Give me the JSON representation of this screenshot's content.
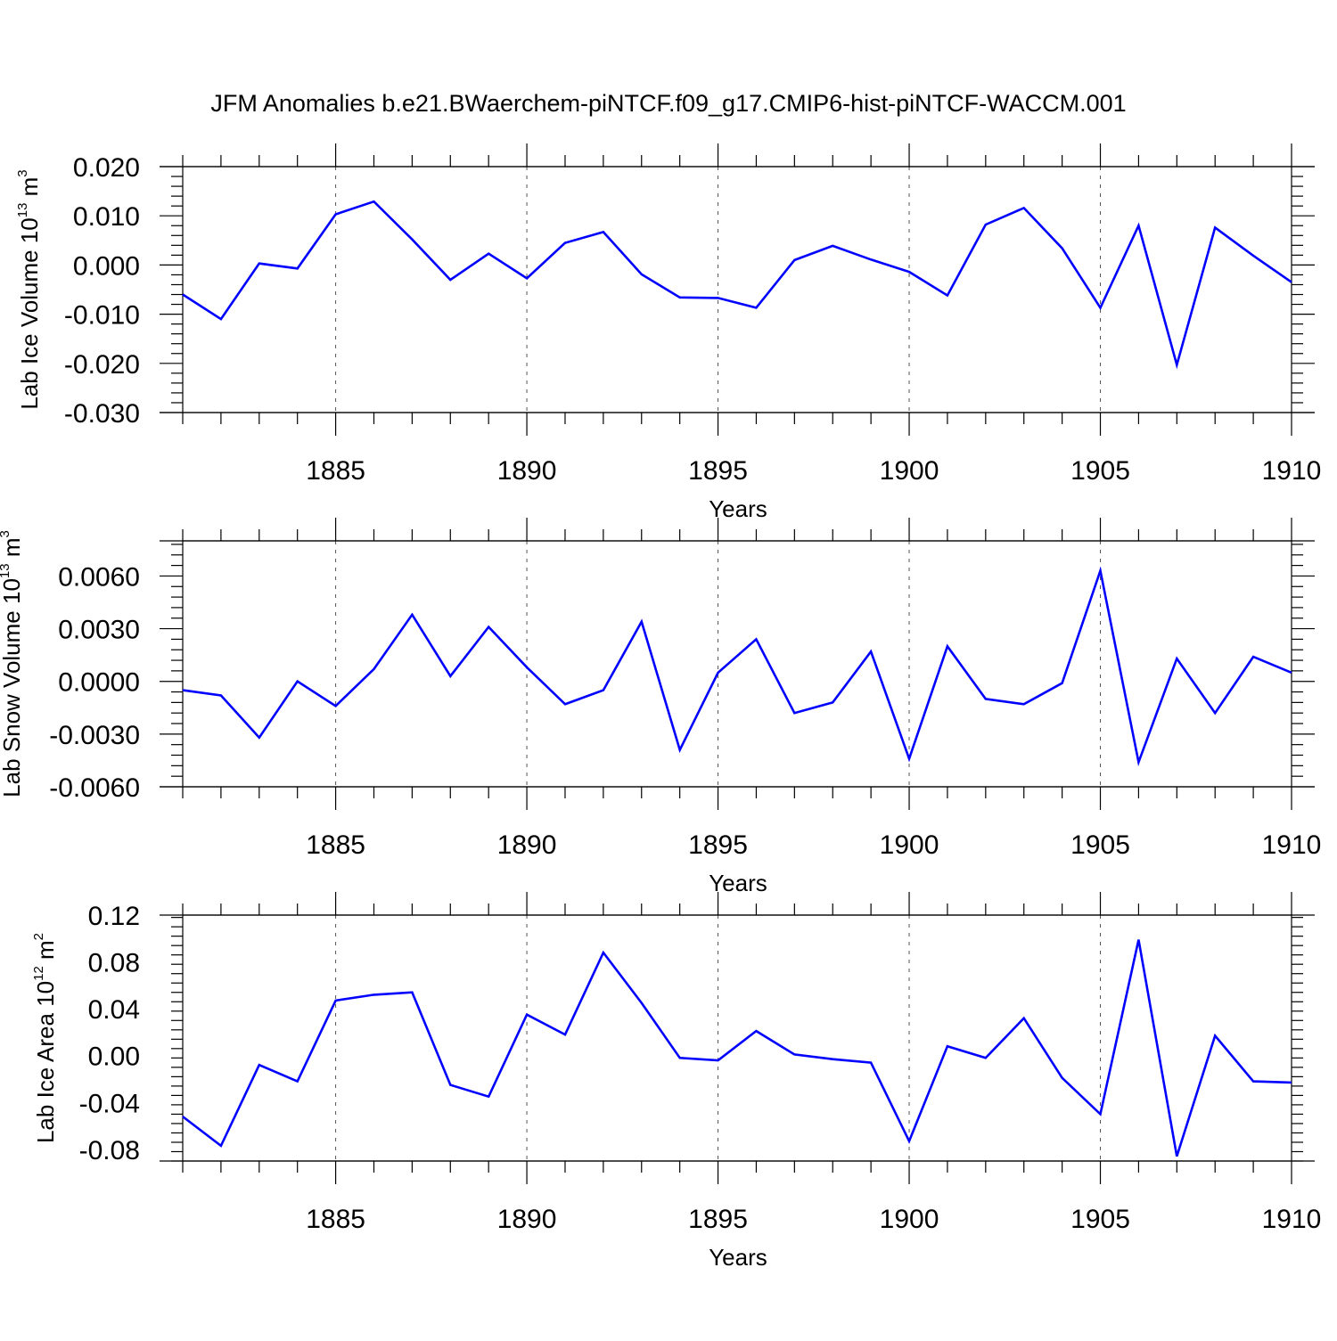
{
  "title": "JFM Anomalies b.e21.BWaerchem-piNTCF.f09_g17.CMIP6-hist-piNTCF-WACCM.001",
  "colors": {
    "line": "#0000ff",
    "axis": "#000000",
    "grid": "#555555"
  },
  "chart_data": [
    {
      "type": "line",
      "ylabel": "Lab Ice Volume 10",
      "ylabel_exp": "13",
      "ylabel_unit": " m",
      "ylabel_unit_exp": "3",
      "xlabel": "Years",
      "xlim": [
        1881,
        1910
      ],
      "ylim": [
        -0.03,
        0.02
      ],
      "xticks": [
        "1885",
        "1890",
        "1895",
        "1900",
        "1905",
        "1910"
      ],
      "yticks": [
        "0.020",
        "0.010",
        "0.000",
        "-0.010",
        "-0.020",
        "-0.030"
      ],
      "ytick_values": [
        0.02,
        0.01,
        0.0,
        -0.01,
        -0.02,
        -0.03
      ],
      "grid": "vertical dashed at major x ticks",
      "x": [
        1881,
        1882,
        1883,
        1884,
        1885,
        1886,
        1887,
        1888,
        1889,
        1890,
        1891,
        1892,
        1893,
        1894,
        1895,
        1896,
        1897,
        1898,
        1899,
        1900,
        1901,
        1902,
        1903,
        1904,
        1905,
        1906,
        1907,
        1908,
        1909,
        1910
      ],
      "values": [
        -0.006,
        -0.011,
        0.0003,
        -0.0007,
        0.0103,
        0.0129,
        0.0052,
        -0.003,
        0.0023,
        -0.0027,
        0.0045,
        0.0067,
        -0.0019,
        -0.0066,
        -0.0067,
        -0.0087,
        0.001,
        0.0039,
        0.0011,
        -0.0014,
        -0.0062,
        0.0082,
        0.0116,
        0.0034,
        -0.0087,
        0.008,
        -0.0203,
        0.0076,
        0.0019,
        -0.0035
      ]
    },
    {
      "type": "line",
      "ylabel": "Lab Snow Volume 10",
      "ylabel_exp": "13",
      "ylabel_unit": " m",
      "ylabel_unit_exp": "3",
      "xlabel": "Years",
      "xlim": [
        1881,
        1910
      ],
      "ylim": [
        -0.006,
        0.008
      ],
      "xticks": [
        "1885",
        "1890",
        "1895",
        "1900",
        "1905",
        "1910"
      ],
      "yticks": [
        "0.0060",
        "0.0030",
        "0.0000",
        "-0.0030",
        "-0.0060"
      ],
      "ytick_values": [
        0.006,
        0.003,
        0.0,
        -0.003,
        -0.006
      ],
      "grid": "vertical dashed at major x ticks",
      "x": [
        1881,
        1882,
        1883,
        1884,
        1885,
        1886,
        1887,
        1888,
        1889,
        1890,
        1891,
        1892,
        1893,
        1894,
        1895,
        1896,
        1897,
        1898,
        1899,
        1900,
        1901,
        1902,
        1903,
        1904,
        1905,
        1906,
        1907,
        1908,
        1909,
        1910
      ],
      "values": [
        -0.0005,
        -0.0008,
        -0.0032,
        0.0,
        -0.0014,
        0.0007,
        0.0038,
        0.0003,
        0.0031,
        0.0008,
        -0.0013,
        -0.0005,
        0.0034,
        -0.0039,
        0.0005,
        0.0024,
        -0.0018,
        -0.0012,
        0.0017,
        -0.0044,
        0.002,
        -0.001,
        -0.0013,
        -0.0001,
        0.0063,
        -0.0046,
        0.0013,
        -0.0018,
        0.0014,
        0.0005
      ]
    },
    {
      "type": "line",
      "ylabel": "Lab Ice Area 10",
      "ylabel_exp": "12",
      "ylabel_unit": " m",
      "ylabel_unit_exp": "2",
      "xlabel": "Years",
      "xlim": [
        1881,
        1910
      ],
      "ylim": [
        -0.09,
        0.12
      ],
      "xticks": [
        "1885",
        "1890",
        "1895",
        "1900",
        "1905",
        "1910"
      ],
      "yticks": [
        "0.12",
        "0.08",
        "0.04",
        "0.00",
        "-0.04",
        "-0.08"
      ],
      "ytick_values": [
        0.12,
        0.08,
        0.04,
        0.0,
        -0.04,
        -0.08
      ],
      "grid": "vertical dashed at major x ticks",
      "x": [
        1881,
        1882,
        1883,
        1884,
        1885,
        1886,
        1887,
        1888,
        1889,
        1890,
        1891,
        1892,
        1893,
        1894,
        1895,
        1896,
        1897,
        1898,
        1899,
        1900,
        1901,
        1902,
        1903,
        1904,
        1905,
        1906,
        1907,
        1908,
        1909,
        1910
      ],
      "values": [
        -0.052,
        -0.077,
        -0.008,
        -0.022,
        0.047,
        0.052,
        0.054,
        -0.025,
        -0.035,
        0.035,
        0.018,
        0.088,
        0.045,
        -0.002,
        -0.004,
        0.021,
        0.001,
        -0.003,
        -0.006,
        -0.073,
        0.008,
        -0.002,
        0.032,
        -0.019,
        -0.05,
        0.099,
        -0.086,
        0.017,
        -0.022,
        -0.023
      ]
    }
  ]
}
